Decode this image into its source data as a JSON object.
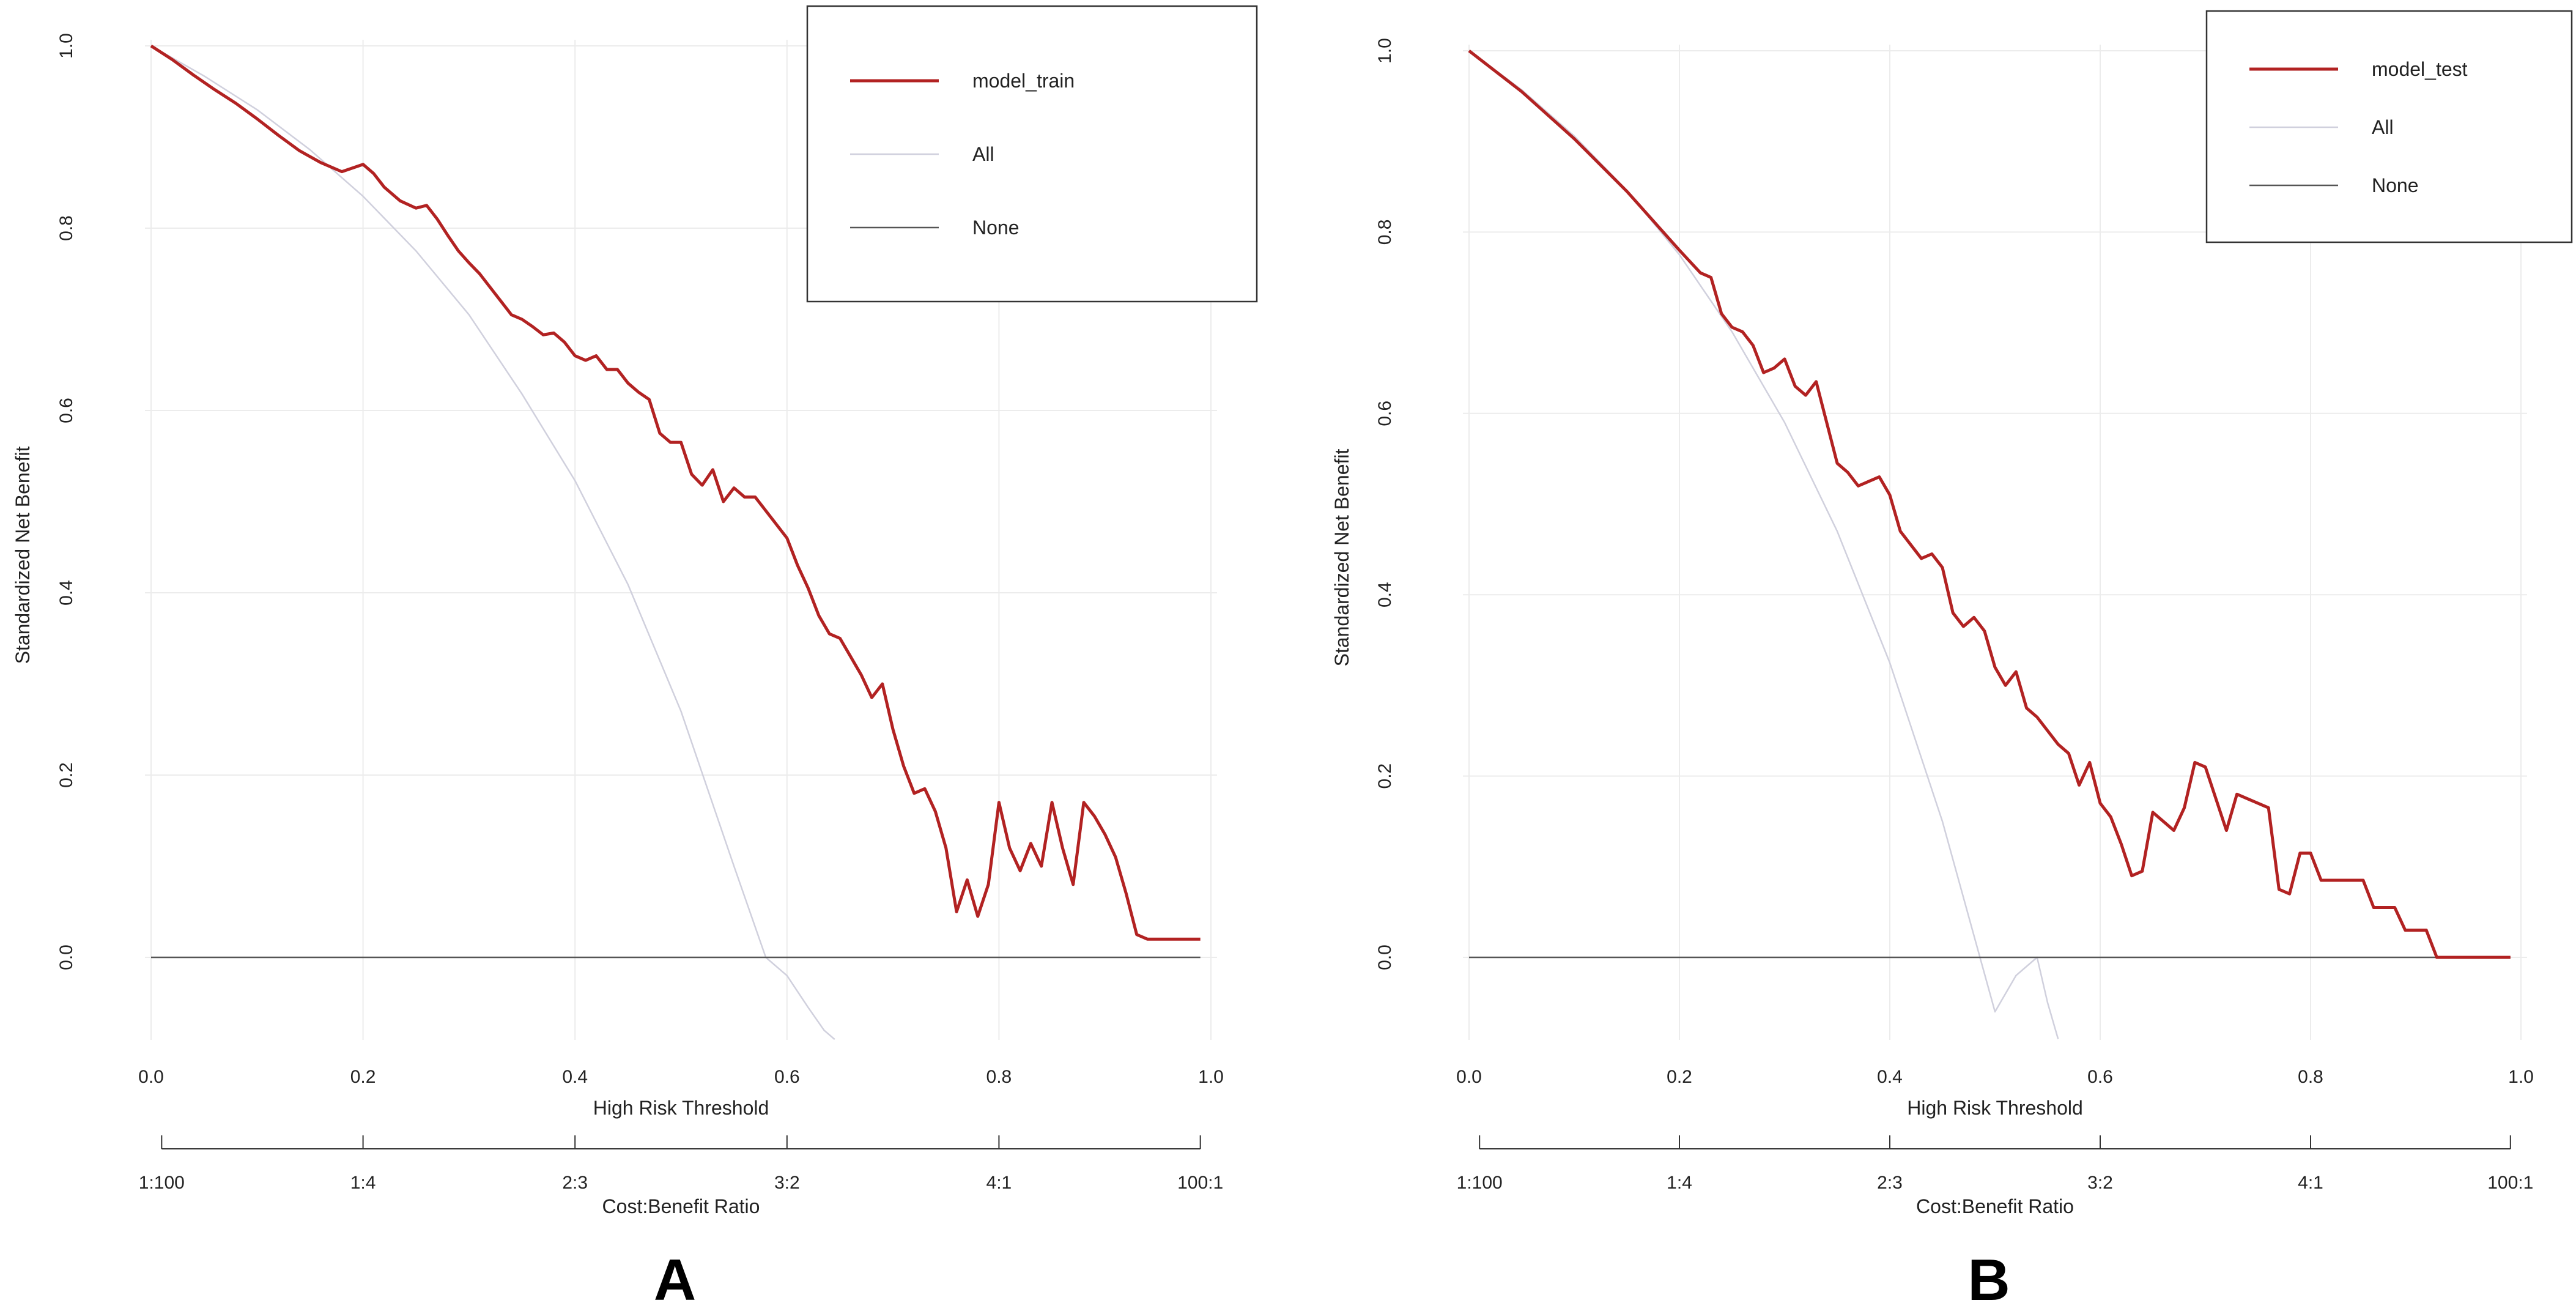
{
  "chart_data": [
    {
      "type": "line",
      "panel_label": "A",
      "xlabel": "High Risk Threshold",
      "ylabel": "Standardized Net Benefit",
      "xlim": [
        0.0,
        1.0
      ],
      "ylim": [
        -0.09,
        1.0
      ],
      "x_ticks": [
        "0.0",
        "0.2",
        "0.4",
        "0.6",
        "0.8",
        "1.0"
      ],
      "y_ticks": [
        "0.0",
        "0.2",
        "0.4",
        "0.6",
        "0.8",
        "1.0"
      ],
      "cost_benefit_label": "Cost:Benefit Ratio",
      "cost_benefit_ticks": [
        "1:100",
        "1:4",
        "2:3",
        "3:2",
        "4:1",
        "100:1"
      ],
      "grid": true,
      "legend_position": "top-right",
      "series": [
        {
          "name": "model_train",
          "color": "#b22222",
          "x": [
            0.0,
            0.02,
            0.04,
            0.06,
            0.08,
            0.1,
            0.12,
            0.14,
            0.16,
            0.18,
            0.2,
            0.21,
            0.22,
            0.235,
            0.25,
            0.26,
            0.27,
            0.28,
            0.29,
            0.3,
            0.31,
            0.32,
            0.33,
            0.34,
            0.35,
            0.36,
            0.37,
            0.38,
            0.39,
            0.4,
            0.41,
            0.42,
            0.43,
            0.44,
            0.45,
            0.46,
            0.47,
            0.48,
            0.49,
            0.5,
            0.51,
            0.52,
            0.53,
            0.54,
            0.55,
            0.56,
            0.57,
            0.58,
            0.59,
            0.6,
            0.61,
            0.62,
            0.63,
            0.64,
            0.65,
            0.66,
            0.67,
            0.68,
            0.69,
            0.7,
            0.71,
            0.72,
            0.73,
            0.74,
            0.75,
            0.76,
            0.77,
            0.78,
            0.79,
            0.8,
            0.81,
            0.82,
            0.83,
            0.84,
            0.85,
            0.86,
            0.87,
            0.88,
            0.89,
            0.9,
            0.91,
            0.92,
            0.93,
            0.94,
            0.95,
            0.96,
            0.97,
            0.98,
            0.99
          ],
          "values": [
            1.0,
            0.985,
            0.968,
            0.952,
            0.937,
            0.92,
            0.902,
            0.885,
            0.872,
            0.862,
            0.87,
            0.86,
            0.845,
            0.83,
            0.822,
            0.825,
            0.81,
            0.792,
            0.775,
            0.762,
            0.75,
            0.735,
            0.72,
            0.705,
            0.7,
            0.692,
            0.683,
            0.685,
            0.675,
            0.66,
            0.655,
            0.66,
            0.645,
            0.645,
            0.63,
            0.62,
            0.612,
            0.575,
            0.565,
            0.565,
            0.53,
            0.518,
            0.535,
            0.5,
            0.515,
            0.505,
            0.505,
            0.49,
            0.475,
            0.46,
            0.43,
            0.405,
            0.375,
            0.355,
            0.35,
            0.33,
            0.31,
            0.285,
            0.3,
            0.25,
            0.21,
            0.18,
            0.185,
            0.16,
            0.12,
            0.05,
            0.085,
            0.045,
            0.08,
            0.17,
            0.12,
            0.095,
            0.125,
            0.1,
            0.17,
            0.12,
            0.08,
            0.17,
            0.155,
            0.135,
            0.11,
            0.07,
            0.025,
            0.02,
            0.02,
            0.02,
            0.02,
            0.02,
            0.02
          ]
        },
        {
          "name": "All",
          "color": "#d0d0dd",
          "x": [
            0.0,
            0.05,
            0.1,
            0.15,
            0.2,
            0.25,
            0.3,
            0.35,
            0.4,
            0.45,
            0.5,
            0.55,
            0.58,
            0.6,
            0.62,
            0.635,
            0.645
          ],
          "values": [
            1.0,
            0.967,
            0.93,
            0.886,
            0.835,
            0.775,
            0.705,
            0.618,
            0.523,
            0.409,
            0.27,
            0.1,
            0.0,
            -0.02,
            -0.055,
            -0.08,
            -0.09
          ]
        },
        {
          "name": "None",
          "color": "#555555",
          "x": [
            0.0,
            0.99
          ],
          "values": [
            0.0,
            0.0
          ]
        }
      ]
    },
    {
      "type": "line",
      "panel_label": "B",
      "xlabel": "High Risk Threshold",
      "ylabel": "Standardized Net Benefit",
      "xlim": [
        0.0,
        1.0
      ],
      "ylim": [
        -0.09,
        1.0
      ],
      "x_ticks": [
        "0.0",
        "0.2",
        "0.4",
        "0.6",
        "0.8",
        "1.0"
      ],
      "y_ticks": [
        "0.0",
        "0.2",
        "0.4",
        "0.6",
        "0.8",
        "1.0"
      ],
      "cost_benefit_label": "Cost:Benefit Ratio",
      "cost_benefit_ticks": [
        "1:100",
        "1:4",
        "2:3",
        "3:2",
        "4:1",
        "100:1"
      ],
      "grid": true,
      "legend_position": "top-right",
      "series": [
        {
          "name": "model_test",
          "color": "#b22222",
          "x": [
            0.0,
            0.05,
            0.1,
            0.15,
            0.2,
            0.22,
            0.23,
            0.24,
            0.25,
            0.26,
            0.27,
            0.28,
            0.29,
            0.3,
            0.31,
            0.32,
            0.33,
            0.34,
            0.35,
            0.36,
            0.37,
            0.38,
            0.39,
            0.4,
            0.41,
            0.42,
            0.43,
            0.44,
            0.45,
            0.46,
            0.47,
            0.48,
            0.49,
            0.5,
            0.51,
            0.52,
            0.53,
            0.54,
            0.55,
            0.56,
            0.57,
            0.58,
            0.59,
            0.6,
            0.61,
            0.62,
            0.63,
            0.64,
            0.65,
            0.66,
            0.67,
            0.68,
            0.69,
            0.7,
            0.71,
            0.72,
            0.73,
            0.74,
            0.75,
            0.76,
            0.77,
            0.78,
            0.79,
            0.8,
            0.81,
            0.82,
            0.83,
            0.84,
            0.85,
            0.86,
            0.87,
            0.88,
            0.89,
            0.9,
            0.91,
            0.92,
            0.93,
            0.94,
            0.95,
            0.96,
            0.97,
            0.98,
            0.99
          ],
          "values": [
            1.0,
            0.955,
            0.903,
            0.845,
            0.78,
            0.755,
            0.75,
            0.71,
            0.695,
            0.69,
            0.675,
            0.645,
            0.65,
            0.66,
            0.63,
            0.62,
            0.635,
            0.59,
            0.545,
            0.535,
            0.52,
            0.525,
            0.53,
            0.51,
            0.47,
            0.455,
            0.44,
            0.445,
            0.43,
            0.38,
            0.365,
            0.375,
            0.36,
            0.32,
            0.3,
            0.315,
            0.275,
            0.265,
            0.25,
            0.235,
            0.225,
            0.19,
            0.215,
            0.17,
            0.155,
            0.125,
            0.09,
            0.095,
            0.16,
            0.15,
            0.14,
            0.165,
            0.215,
            0.21,
            0.175,
            0.14,
            0.18,
            0.175,
            0.17,
            0.165,
            0.075,
            0.07,
            0.115,
            0.115,
            0.085,
            0.085,
            0.085,
            0.085,
            0.085,
            0.055,
            0.055,
            0.055,
            0.03,
            0.03,
            0.03,
            0.0,
            0.0,
            0.0,
            0.0,
            0.0,
            0.0,
            0.0,
            0.0
          ]
        },
        {
          "name": "All",
          "color": "#d0d0dd",
          "x": [
            0.0,
            0.05,
            0.1,
            0.15,
            0.2,
            0.25,
            0.3,
            0.35,
            0.4,
            0.45,
            0.5,
            0.52,
            0.54,
            0.55,
            0.56
          ],
          "values": [
            1.0,
            0.957,
            0.906,
            0.846,
            0.775,
            0.69,
            0.59,
            0.47,
            0.325,
            0.15,
            -0.06,
            -0.02,
            0.0,
            -0.05,
            -0.09
          ]
        },
        {
          "name": "None",
          "color": "#555555",
          "x": [
            0.0,
            0.99
          ],
          "values": [
            0.0,
            0.0
          ]
        }
      ]
    }
  ]
}
